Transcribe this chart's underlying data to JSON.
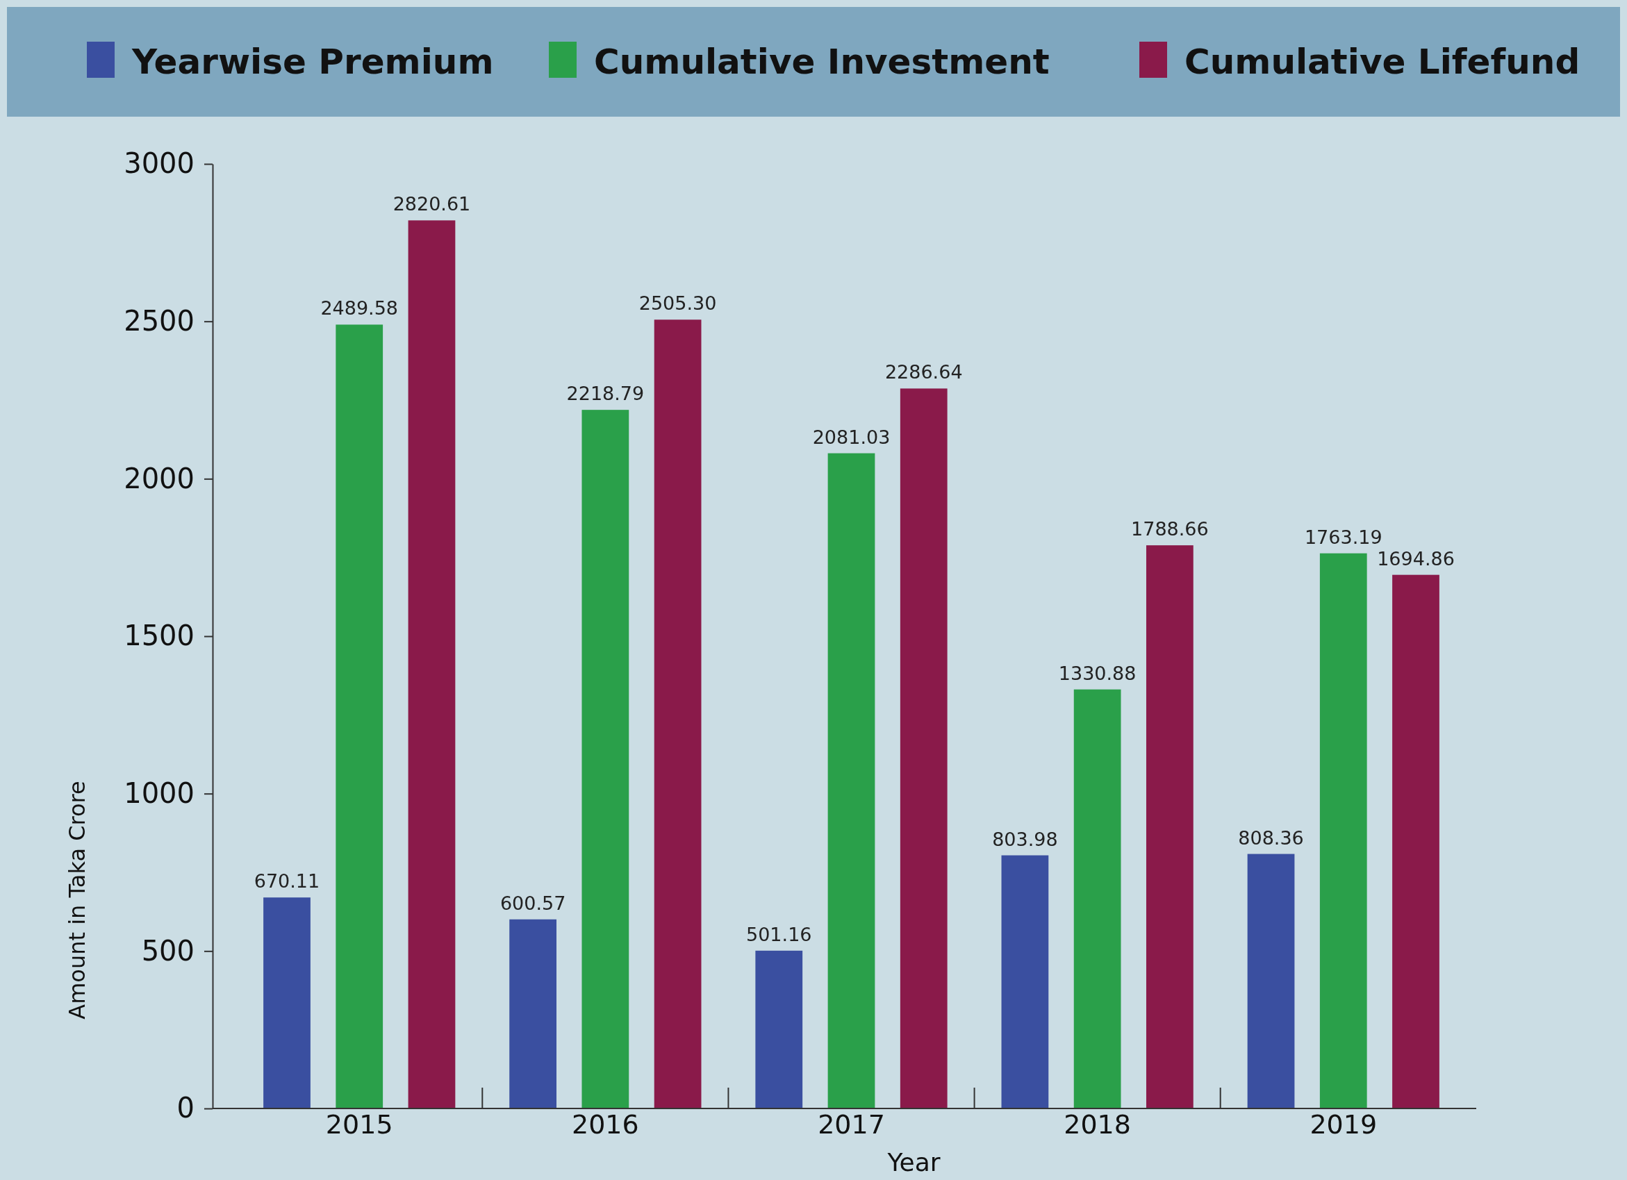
{
  "chart_data": {
    "type": "bar",
    "xlabel": "Year",
    "ylabel": "Amount in Taka Crore",
    "categories": [
      "2015",
      "2016",
      "2017",
      "2018",
      "2019"
    ],
    "series": [
      {
        "name": "Yearwise Premium",
        "color": "#3a4fa0",
        "values": [
          670.11,
          600.57,
          501.16,
          803.98,
          808.36
        ],
        "value_labels": [
          "670.11",
          "600.57",
          "501.16",
          "803.98",
          "808.36"
        ]
      },
      {
        "name": "Cumulative Investment",
        "color": "#2aa04a",
        "values": [
          2489.58,
          2218.79,
          2081.03,
          1330.88,
          1763.19
        ],
        "value_labels": [
          "2489.58",
          "2218.79",
          "2081.03",
          "1330.88",
          "1763.19"
        ]
      },
      {
        "name": "Cumulative Lifefund",
        "color": "#8a1a4a",
        "values": [
          2820.61,
          2505.3,
          2286.64,
          1788.66,
          1694.86
        ],
        "value_labels": [
          "2820.61",
          "2505.30",
          "2286.64",
          "1788.66",
          "1694.86"
        ]
      }
    ],
    "ylim": [
      0,
      3000
    ],
    "yticks": [
      0,
      500,
      1000,
      1500,
      2000,
      2500,
      3000
    ],
    "grid": false,
    "legend": "top"
  }
}
